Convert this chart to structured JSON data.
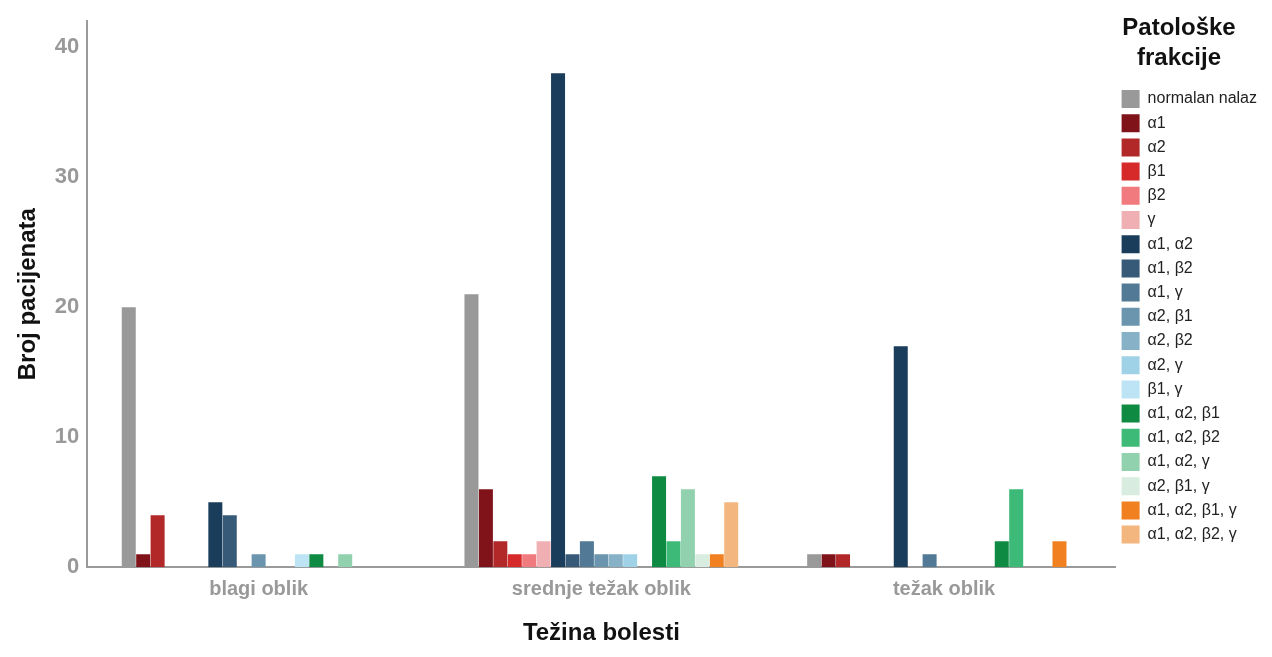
{
  "chart_data": {
    "type": "bar",
    "xlabel": "Težina bolesti",
    "ylabel": "Broj pacijenata",
    "legend_title": "Patološke frakcije",
    "legend": "right",
    "grid": false,
    "categories": [
      "blagi oblik",
      "srednje težak oblik",
      "težak oblik"
    ],
    "ylim": [
      0,
      42
    ],
    "yticks": [
      0,
      10,
      20,
      30,
      40
    ],
    "series": [
      {
        "name": "normalan nalaz",
        "color": "#999999",
        "values": [
          20,
          21,
          1
        ]
      },
      {
        "name": "α1",
        "color": "#7f1319",
        "values": [
          1,
          6,
          1
        ]
      },
      {
        "name": "α2",
        "color": "#b22828",
        "values": [
          4,
          2,
          1
        ]
      },
      {
        "name": "β1",
        "color": "#d62a2a",
        "values": [
          null,
          1,
          null
        ]
      },
      {
        "name": "β2",
        "color": "#f07a7e",
        "values": [
          null,
          1,
          null
        ]
      },
      {
        "name": "γ",
        "color": "#f0b0b3",
        "values": [
          null,
          2,
          null
        ]
      },
      {
        "name": "α1, α2",
        "color": "#1b3d5c",
        "values": [
          5,
          38,
          17
        ]
      },
      {
        "name": "α1, β2",
        "color": "#375a78",
        "values": [
          4,
          1,
          null
        ]
      },
      {
        "name": "α1, γ",
        "color": "#527a96",
        "values": [
          null,
          2,
          1
        ]
      },
      {
        "name": "α2, β1",
        "color": "#6b95ae",
        "values": [
          1,
          1,
          null
        ]
      },
      {
        "name": "α2, β2",
        "color": "#86b1c7",
        "values": [
          null,
          1,
          null
        ]
      },
      {
        "name": "α2, γ",
        "color": "#9fd2e6",
        "values": [
          null,
          1,
          null
        ]
      },
      {
        "name": "β1, γ",
        "color": "#bde4f5",
        "values": [
          1,
          null,
          null
        ]
      },
      {
        "name": "α1, α2, β1",
        "color": "#0e8a43",
        "values": [
          1,
          7,
          2
        ]
      },
      {
        "name": "α1, α2, β2",
        "color": "#3dba78",
        "values": [
          null,
          2,
          6
        ]
      },
      {
        "name": "α1, α2, γ",
        "color": "#92d1ad",
        "values": [
          1,
          6,
          null
        ]
      },
      {
        "name": "α2, β1, γ",
        "color": "#d8ede0",
        "values": [
          null,
          1,
          null
        ]
      },
      {
        "name": "α1, α2, β1, γ",
        "color": "#f08020",
        "values": [
          null,
          1,
          2
        ]
      },
      {
        "name": "α1, α2, β2, γ",
        "color": "#f4b67f",
        "values": [
          null,
          5,
          null
        ]
      }
    ]
  }
}
